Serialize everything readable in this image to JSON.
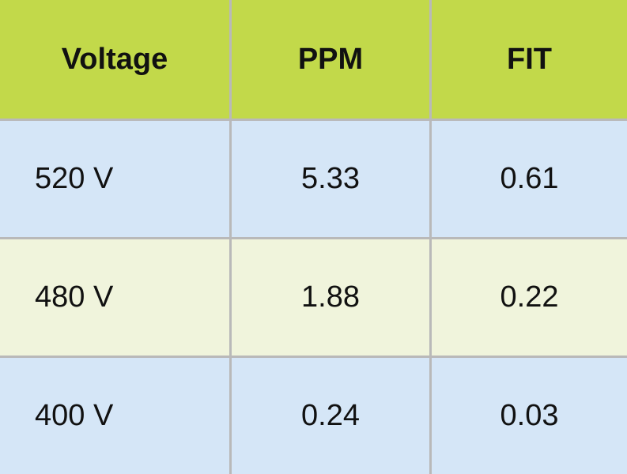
{
  "table": {
    "headers": [
      "Voltage",
      "PPM",
      "FIT"
    ],
    "rows": [
      [
        "520 V",
        "5.33",
        "0.61"
      ],
      [
        "480 V",
        "1.88",
        "0.22"
      ],
      [
        "400 V",
        "0.24",
        "0.03"
      ]
    ]
  },
  "colors": {
    "header_bg": "#c2d94a",
    "row_blue": "#d5e6f7",
    "row_cream": "#f0f4dc",
    "grid_line": "#b9b9b9"
  }
}
